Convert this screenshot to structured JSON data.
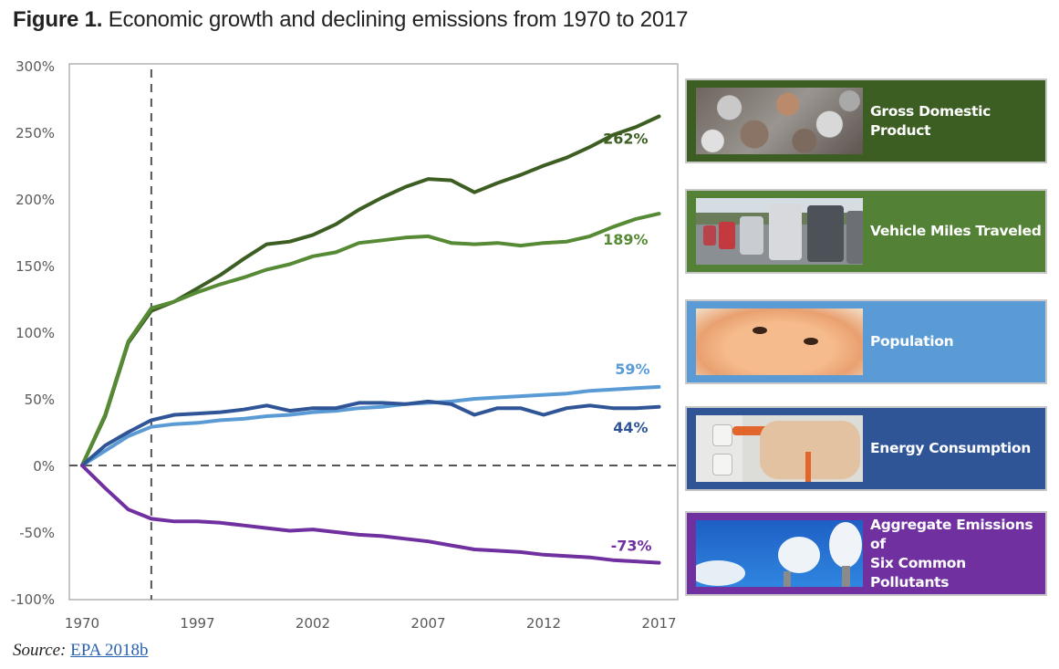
{
  "figure": {
    "label": "Figure 1.",
    "title": "Economic growth and declining emissions from 1970 to 2017"
  },
  "source": {
    "prefix": "Source:",
    "link_text": "EPA 2018b"
  },
  "chart_data": {
    "type": "line",
    "title": "Economic growth and declining emissions from 1970 to 2017",
    "xlabel": "",
    "ylabel": "",
    "x": [
      1970,
      1980,
      1990,
      1995,
      1996,
      1997,
      1998,
      1999,
      2000,
      2001,
      2002,
      2003,
      2004,
      2005,
      2006,
      2007,
      2008,
      2009,
      2010,
      2011,
      2012,
      2013,
      2014,
      2015,
      2016,
      2017
    ],
    "x_tick_labels": [
      "1970",
      "1997",
      "2002",
      "2007",
      "2012",
      "2017"
    ],
    "x_tick_values": [
      1970,
      1997,
      2002,
      2007,
      2012,
      2017
    ],
    "ylim": [
      -100,
      300
    ],
    "y_tick_values": [
      300,
      250,
      200,
      150,
      100,
      50,
      0,
      -50,
      -100
    ],
    "y_tick_labels": [
      "300%",
      "250%",
      "200%",
      "150%",
      "100%",
      "50%",
      "0%",
      "-50%",
      "-100%"
    ],
    "grid": false,
    "reference_lines": [
      {
        "orientation": "horizontal",
        "value": 0,
        "style": "dashed"
      },
      {
        "orientation": "vertical",
        "value": 1995,
        "style": "dashed"
      }
    ],
    "legend_placement": "right",
    "series": [
      {
        "name": "Gross Domestic Product",
        "color": "#3d5e22",
        "end_label": "262%",
        "values": [
          0,
          37,
          92,
          116,
          123,
          133,
          143,
          155,
          166,
          168,
          173,
          181,
          192,
          201,
          209,
          215,
          214,
          205,
          212,
          218,
          225,
          231,
          239,
          248,
          254,
          262
        ]
      },
      {
        "name": "Vehicle Miles Traveled",
        "color": "#568a35",
        "end_label": "189%",
        "values": [
          0,
          38,
          93,
          118,
          123,
          130,
          136,
          141,
          147,
          151,
          157,
          160,
          167,
          169,
          171,
          172,
          167,
          166,
          167,
          165,
          167,
          168,
          172,
          179,
          185,
          189
        ]
      },
      {
        "name": "Population",
        "color": "#5b9bd5",
        "end_label": "59%",
        "values": [
          0,
          11,
          22,
          29,
          31,
          32,
          34,
          35,
          37,
          38,
          40,
          41,
          43,
          44,
          46,
          47,
          48,
          50,
          51,
          52,
          53,
          54,
          56,
          57,
          58,
          59
        ]
      },
      {
        "name": "Energy Consumption",
        "color": "#2f5597",
        "end_label": "44%",
        "values": [
          0,
          15,
          25,
          34,
          38,
          39,
          40,
          42,
          45,
          41,
          43,
          43,
          47,
          47,
          46,
          48,
          46,
          38,
          43,
          43,
          38,
          43,
          45,
          43,
          43,
          44
        ]
      },
      {
        "name": "Aggregate Emissions of Six Common Pollutants",
        "color": "#7030a0",
        "end_label": "-73%",
        "values": [
          0,
          -17,
          -33,
          -40,
          -42,
          -42,
          -43,
          -45,
          -47,
          -49,
          -48,
          -50,
          -52,
          -53,
          -55,
          -57,
          -60,
          -63,
          -64,
          -65,
          -67,
          -68,
          -69,
          -71,
          -72,
          -73
        ]
      }
    ]
  },
  "legend": [
    {
      "label_lines": [
        "Gross Domestic Product"
      ],
      "bg": "#3d5e22",
      "image": "coins-photo"
    },
    {
      "label_lines": [
        "Vehicle Miles Traveled"
      ],
      "bg": "#538135",
      "image": "traffic-photo"
    },
    {
      "label_lines": [
        "Population"
      ],
      "bg": "#5b9bd5",
      "image": "baby-face-photo"
    },
    {
      "label_lines": [
        "Energy Consumption"
      ],
      "bg": "#2f5597",
      "image": "power-plug-photo"
    },
    {
      "label_lines": [
        "Aggregate Emissions of",
        "Six Common Pollutants"
      ],
      "bg": "#7030a0",
      "image": "smokestacks-photo"
    }
  ]
}
